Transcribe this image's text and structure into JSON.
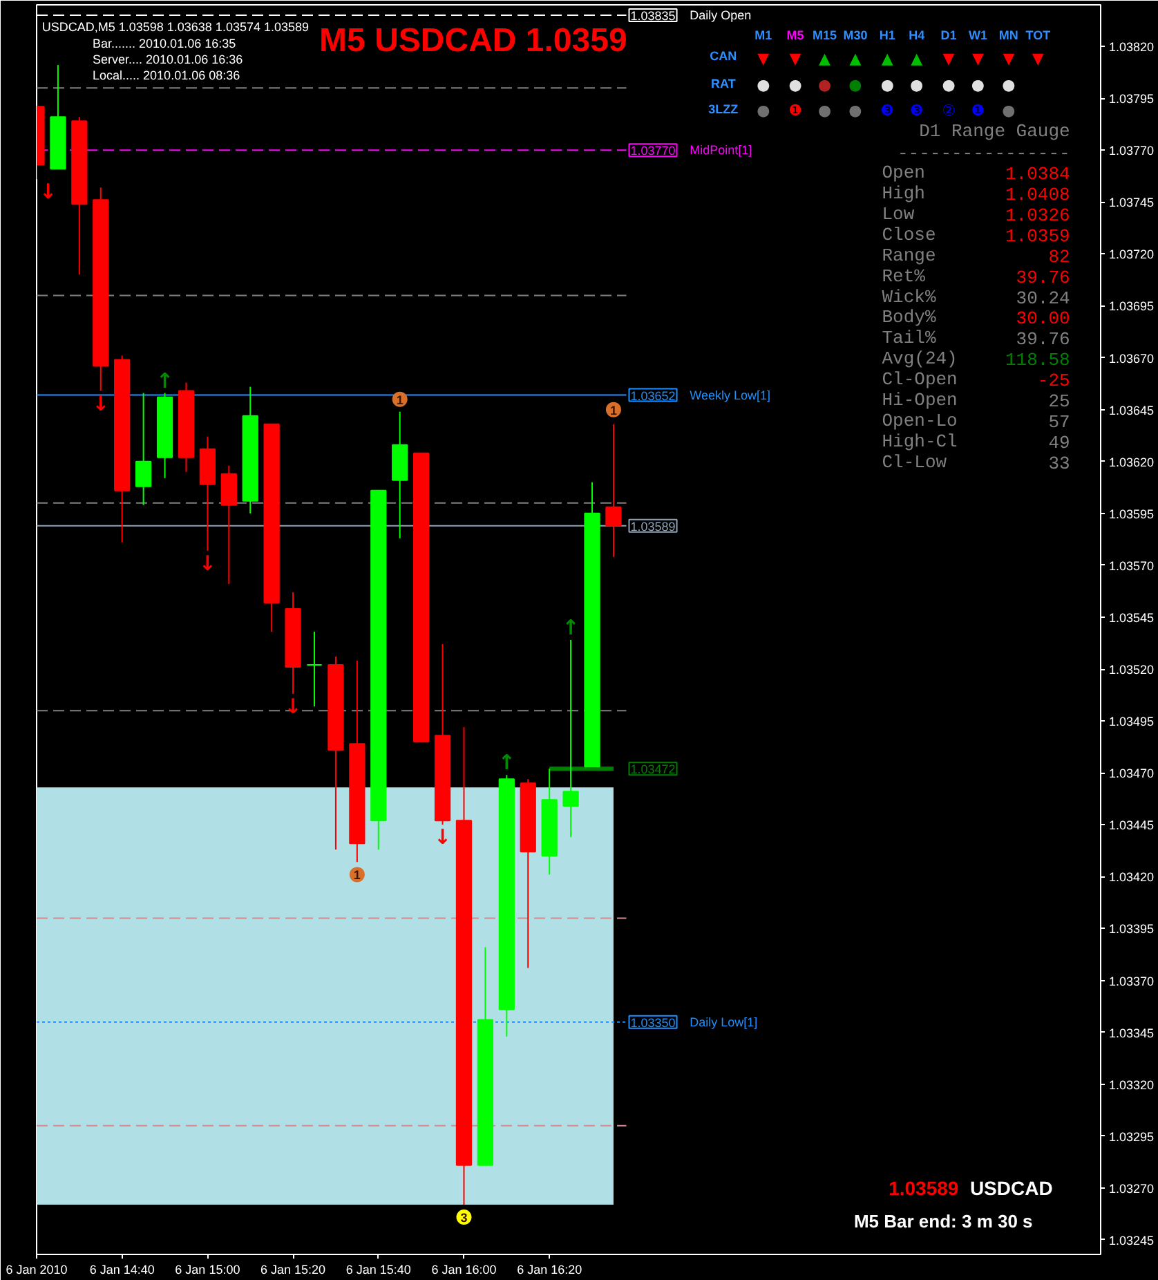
{
  "chart_data": {
    "type": "candlestick",
    "title": "USDCAD,M5  1.03598 1.03638 1.03574 1.03589",
    "x": [
      "2010-01-06T14:20",
      "2010-01-06T14:25",
      "2010-01-06T14:30",
      "2010-01-06T14:35",
      "2010-01-06T14:40",
      "2010-01-06T14:45",
      "2010-01-06T14:50",
      "2010-01-06T14:55",
      "2010-01-06T15:00",
      "2010-01-06T15:05",
      "2010-01-06T15:10",
      "2010-01-06T15:15",
      "2010-01-06T15:20",
      "2010-01-06T15:25",
      "2010-01-06T15:30",
      "2010-01-06T15:35",
      "2010-01-06T15:40",
      "2010-01-06T15:45",
      "2010-01-06T15:50",
      "2010-01-06T15:55",
      "2010-01-06T16:00",
      "2010-01-06T16:05",
      "2010-01-06T16:10",
      "2010-01-06T16:15",
      "2010-01-06T16:20",
      "2010-01-06T16:25",
      "2010-01-06T16:30",
      "2010-01-06T16:35"
    ],
    "ohlc": [
      [
        1.03791,
        1.03791,
        1.03756,
        1.03763
      ],
      [
        1.03761,
        1.03811,
        1.03761,
        1.03786
      ],
      [
        1.03784,
        1.03786,
        1.0371,
        1.03744
      ],
      [
        1.03746,
        1.03752,
        1.03654,
        1.03666
      ],
      [
        1.03669,
        1.03671,
        1.03581,
        1.03606
      ],
      [
        1.03608,
        1.03653,
        1.03599,
        1.0362
      ],
      [
        1.03622,
        1.03653,
        1.03612,
        1.03651
      ],
      [
        1.03654,
        1.03658,
        1.03615,
        1.03622
      ],
      [
        1.03626,
        1.03632,
        1.03577,
        1.03609
      ],
      [
        1.03614,
        1.03618,
        1.03561,
        1.03599
      ],
      [
        1.03601,
        1.03656,
        1.03595,
        1.03642
      ],
      [
        1.03638,
        1.03638,
        1.03538,
        1.03552
      ],
      [
        1.03549,
        1.03557,
        1.03508,
        1.03521
      ],
      [
        1.03522,
        1.03538,
        1.03502,
        1.03522
      ],
      [
        1.03522,
        1.03526,
        1.03433,
        1.03481
      ],
      [
        1.03484,
        1.03524,
        1.03427,
        1.03436
      ],
      [
        1.03447,
        1.03606,
        1.03433,
        1.03606
      ],
      [
        1.03611,
        1.03644,
        1.03583,
        1.03628
      ],
      [
        1.03624,
        1.03624,
        1.03485,
        1.03485
      ],
      [
        1.03488,
        1.03532,
        1.03445,
        1.03447
      ],
      [
        1.03447,
        1.03492,
        1.03262,
        1.03281
      ],
      [
        1.03281,
        1.03386,
        1.03281,
        1.03351
      ],
      [
        1.03356,
        1.03469,
        1.03343,
        1.03467
      ],
      [
        1.03465,
        1.03467,
        1.03376,
        1.03432
      ],
      [
        1.0343,
        1.03472,
        1.03421,
        1.03457
      ],
      [
        1.03454,
        1.03534,
        1.03439,
        1.03461
      ],
      [
        1.03473,
        1.0361,
        1.03473,
        1.03595
      ],
      [
        1.03598,
        1.03638,
        1.03574,
        1.03589
      ]
    ],
    "colors": [
      "#ff0000",
      "#00ff00",
      "#ff0000",
      "#ff0000",
      "#ff0000",
      "#00ff00",
      "#00ff00",
      "#ff0000",
      "#ff0000",
      "#ff0000",
      "#00ff00",
      "#ff0000",
      "#ff0000",
      "#00ff00",
      "#ff0000",
      "#ff0000",
      "#00ff00",
      "#00ff00",
      "#ff0000",
      "#ff0000",
      "#ff0000",
      "#00ff00",
      "#00ff00",
      "#ff0000",
      "#00ff00",
      "#00ff00",
      "#00ff00",
      "#ff0000"
    ],
    "series": [
      {
        "type": "scatter",
        "marker": "circle",
        "x": [
          "2010-01-06T15:45",
          "2010-01-06T16:35",
          "2010-01-06T15:35",
          "2010-01-06T16:00"
        ],
        "values": [
          1.0365,
          1.03645,
          1.03421,
          1.03256
        ],
        "colors": [
          "#d8702a",
          "#d8702a",
          "#d8702a",
          "#ffff00"
        ]
      },
      {
        "type": "line",
        "x": [
          "2010-01-06T16:20",
          "2010-01-06T16:35"
        ],
        "values": [
          1.03472,
          1.03472
        ],
        "color": "#008000"
      }
    ],
    "xlim": [
      "2010-01-06T14:20",
      "2010-01-06T18:29"
    ],
    "xticks": [
      {
        "value": "2010-01-06T14:20",
        "label": "6 Jan 2010"
      },
      {
        "value": "2010-01-06T14:40",
        "label": "6 Jan 14:40"
      },
      {
        "value": "2010-01-06T15:00",
        "label": "6 Jan 15:00"
      },
      {
        "value": "2010-01-06T15:20",
        "label": "6 Jan 15:20"
      },
      {
        "value": "2010-01-06T15:40",
        "label": "6 Jan 15:40"
      },
      {
        "value": "2010-01-06T16:00",
        "label": "6 Jan 16:00"
      },
      {
        "value": "2010-01-06T16:20",
        "label": "6 Jan 16:20"
      }
    ],
    "ylim": [
      1.03238,
      1.0384
    ],
    "yticks": [
      1.03245,
      {
        "value": 1.0327,
        "label": "1.03270"
      },
      1.03295,
      {
        "value": 1.0332,
        "label": "1.03320"
      },
      1.03345,
      {
        "value": 1.0337,
        "label": "1.03370"
      },
      1.03395,
      {
        "value": 1.0342,
        "label": "1.03420"
      },
      1.03445,
      {
        "value": 1.0347,
        "label": "1.03470"
      },
      1.03495,
      {
        "value": 1.0352,
        "label": "1.03520"
      },
      1.03545,
      {
        "value": 1.0357,
        "label": "1.03570"
      },
      1.03595,
      {
        "value": 1.0362,
        "label": "1.03620"
      },
      1.03645,
      {
        "value": 1.0367,
        "label": "1.03670"
      },
      1.03695,
      {
        "value": 1.0372,
        "label": "1.03720"
      },
      1.03745,
      {
        "value": 1.0377,
        "label": "1.03770"
      },
      1.03795,
      {
        "value": 1.0382,
        "label": "1.03820"
      }
    ],
    "bands": [
      {
        "axis": "y",
        "from": 1.03262,
        "to": 1.03463,
        "color": "#b0dfe5"
      }
    ],
    "ref_lines": [
      {
        "axis": "y",
        "value": 1.03835,
        "label": "Daily Open",
        "color": "#ffffff",
        "line_style": "dashed"
      },
      {
        "axis": "y",
        "value": 1.038,
        "color": "#808080",
        "line_style": "dashed"
      },
      {
        "axis": "y",
        "value": 1.0377,
        "label": "MidPoint[1]",
        "color": "#ff00ff",
        "line_style": "dashed"
      },
      {
        "axis": "y",
        "value": 1.037,
        "color": "#808080",
        "line_style": "dashed"
      },
      {
        "axis": "y",
        "value": 1.03652,
        "label": "Weekly Low[1]",
        "color": "#1e90ff",
        "line_style": "solid"
      },
      {
        "axis": "y",
        "value": 1.036,
        "color": "#808080",
        "line_style": "dashed"
      },
      {
        "axis": "y",
        "value": 1.03589,
        "color": "#8fa3b8",
        "line_style": "solid"
      },
      {
        "axis": "y",
        "value": 1.035,
        "color": "#808080",
        "line_style": "dashed"
      },
      {
        "axis": "y",
        "value": 1.034,
        "color": "#d48a8f",
        "line_style": "dashed"
      },
      {
        "axis": "y",
        "value": 1.0335,
        "label": "Daily Low[1]",
        "color": "#1e90ff",
        "line_style": "dotted"
      },
      {
        "axis": "y",
        "value": 1.033,
        "color": "#d48a8f",
        "line_style": "dashed"
      }
    ],
    "annotations": [
      "Bar....... 2010.01.06 16:35",
      "Server.... 2010.01.06 16:36",
      "Local..... 2010.01.06 08:36",
      "M5 USDCAD 1.0359",
      "M1",
      "M5",
      "M15",
      "M30",
      "H1",
      "H4",
      "D1",
      "W1",
      "MN",
      "TOT",
      "CAN",
      "RAT",
      "3LZZ",
      "▼",
      "▼",
      "▲",
      "▲",
      "▲",
      "▲",
      "▼",
      "▼",
      "▼",
      "▼",
      "●",
      "●",
      "●",
      "●",
      "●",
      "●",
      "●",
      "●",
      "●",
      "●",
      "❶",
      "●",
      "●",
      "❸",
      "❸",
      "②",
      "❶",
      "●",
      "D1 Range Gauge",
      "----------------",
      "Open",
      "1.0384",
      "High",
      "1.0408",
      "Low",
      "1.0326",
      "Close",
      "1.0359",
      "Range",
      "82",
      "Ret%",
      "39.76",
      "Wick%",
      "30.24",
      "Body%",
      "30.00",
      "Tail%",
      "39.76",
      "Avg(24)",
      "118.58",
      "Cl-Open",
      "-25",
      "Hi-Open",
      "25",
      "Open-Lo",
      "57",
      "High-Cl",
      "49",
      "Cl-Low",
      "33",
      "1.03589",
      "USDCAD",
      "M5 Bar end: 3 m 30 s",
      {
        "text": "1.03835",
        "x": "2010-01-06T16:35",
        "y": 1.03835
      },
      {
        "text": "1.03770",
        "x": "2010-01-06T16:35",
        "y": 1.0377
      },
      {
        "text": "1.03652",
        "x": "2010-01-06T16:35",
        "y": 1.03652
      },
      {
        "text": "1.03589",
        "x": "2010-01-06T16:35",
        "y": 1.03589
      },
      {
        "text": "1.03472",
        "x": "2010-01-06T16:35",
        "y": 1.03472
      },
      {
        "text": "1.03350",
        "x": "2010-01-06T16:35",
        "y": 1.0335
      },
      {
        "text": "1",
        "x": "2010-01-06T15:45",
        "y": 1.0365
      },
      {
        "text": "1",
        "x": "2010-01-06T16:35",
        "y": 1.03645
      },
      {
        "text": "1",
        "x": "2010-01-06T15:35",
        "y": 1.03421
      },
      {
        "text": "3",
        "x": "2010-01-06T16:00",
        "y": 1.03256
      },
      {
        "text": "↓",
        "x": "2010-01-06T14:20",
        "y": 1.03756
      },
      {
        "text": "↓",
        "x": "2010-01-06T14:35",
        "y": 1.03654
      },
      {
        "text": "↓",
        "x": "2010-01-06T15:00",
        "y": 1.03577
      },
      {
        "text": "↓",
        "x": "2010-01-06T15:20",
        "y": 1.03508
      },
      {
        "text": "↓",
        "x": "2010-01-06T15:55",
        "y": 1.03445
      },
      {
        "text": "↑",
        "x": "2010-01-06T14:50",
        "y": 1.03653
      },
      {
        "text": "↑",
        "x": "2010-01-06T16:10",
        "y": 1.03469
      },
      {
        "text": "↑",
        "x": "2010-01-06T16:25",
        "y": 1.03534
      }
    ]
  }
}
